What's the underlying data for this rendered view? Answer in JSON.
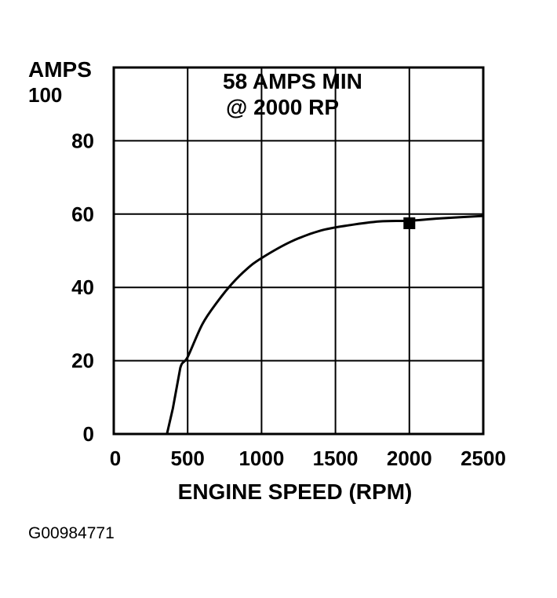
{
  "chart_data": {
    "type": "line",
    "ylabel": "AMPS",
    "xlabel": "ENGINE SPEED (RPM)",
    "xlim": [
      0,
      2500
    ],
    "ylim": [
      0,
      100
    ],
    "x_ticks": [
      0,
      500,
      1000,
      1500,
      2000,
      2500
    ],
    "y_ticks": [
      0,
      20,
      40,
      60,
      80,
      100
    ],
    "x_tick_labels": [
      "0",
      "500",
      "1000",
      "1500",
      "2000",
      "2500"
    ],
    "y_tick_labels": [
      "0",
      "20",
      "40",
      "60",
      "80",
      "100"
    ],
    "grid": true,
    "annotation_lines": [
      "58 AMPS MIN",
      "@ 2000 RP"
    ],
    "series": [
      {
        "x": [
          360,
          400,
          450,
          500,
          600,
          700,
          800,
          900,
          1000,
          1200,
          1400,
          1600,
          1800,
          2000,
          2200,
          2500
        ],
        "y": [
          0,
          7,
          18,
          21,
          30,
          36,
          41,
          45,
          48,
          52.5,
          55.5,
          57,
          58,
          58.2,
          58.8,
          59.5
        ]
      }
    ],
    "marker": {
      "x": 2000,
      "y": 57.5,
      "shape": "square"
    },
    "colors": {
      "line": "#000000",
      "grid": "#000000",
      "background": "#ffffff"
    }
  },
  "figure_id": "G00984771"
}
